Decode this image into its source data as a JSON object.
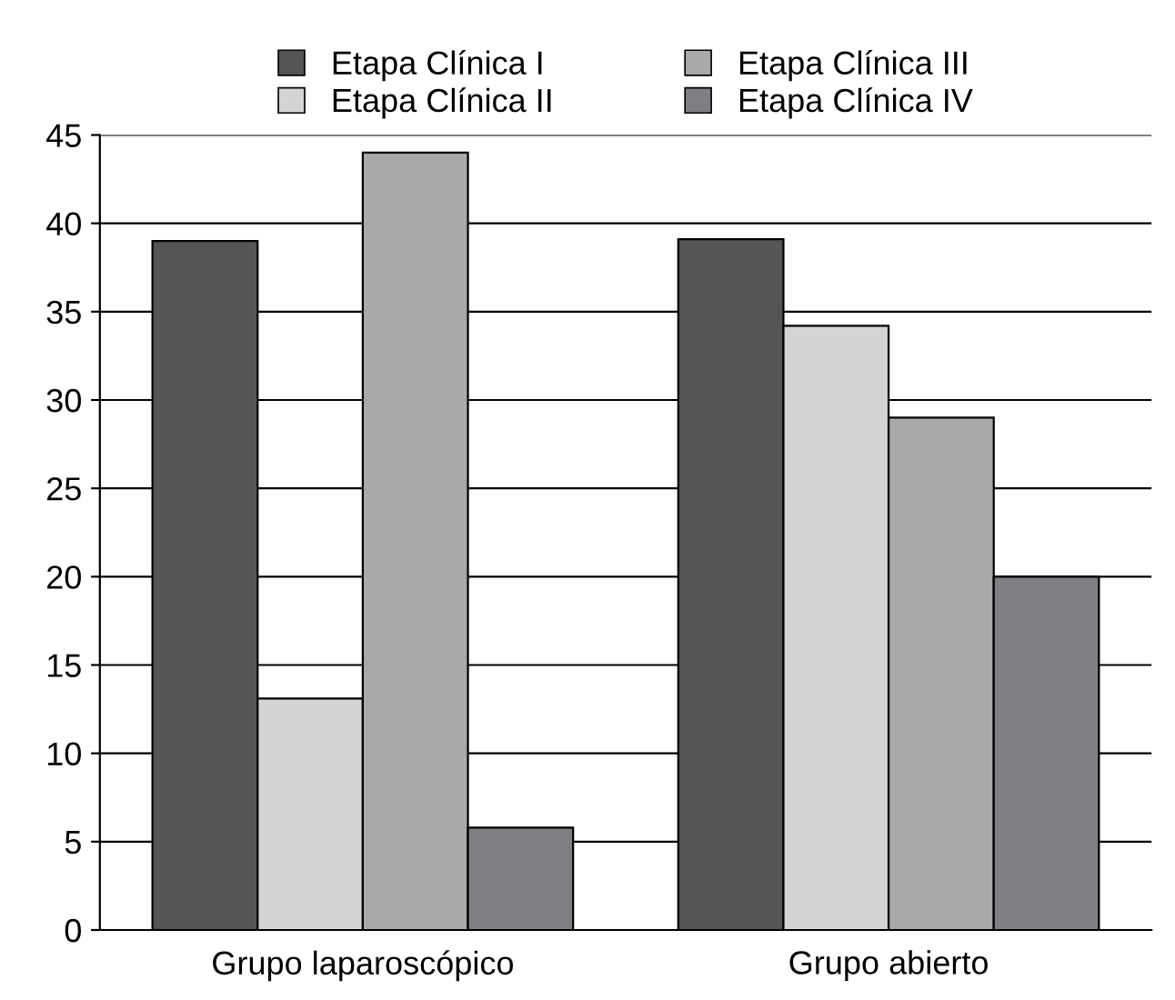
{
  "chart_data": {
    "type": "bar",
    "categories": [
      "Grupo laparoscópico",
      "Grupo abierto"
    ],
    "series": [
      {
        "name": "Etapa Clínica I",
        "color": "#555555",
        "values": [
          39,
          39.1
        ]
      },
      {
        "name": "Etapa Clínica II",
        "color": "#d4d4d4",
        "values": [
          13.1,
          34.2
        ]
      },
      {
        "name": "Etapa Clínica III",
        "color": "#a9a9ab",
        "values": [
          44,
          29
        ]
      },
      {
        "name": "Etapa Clínica IV",
        "color": "#7f7f83",
        "values": [
          5.8,
          20
        ]
      }
    ],
    "ylim": [
      0,
      45
    ],
    "yticks": [
      0,
      5,
      10,
      15,
      20,
      25,
      30,
      35,
      40,
      45
    ],
    "grid": "y",
    "legend": "top"
  }
}
